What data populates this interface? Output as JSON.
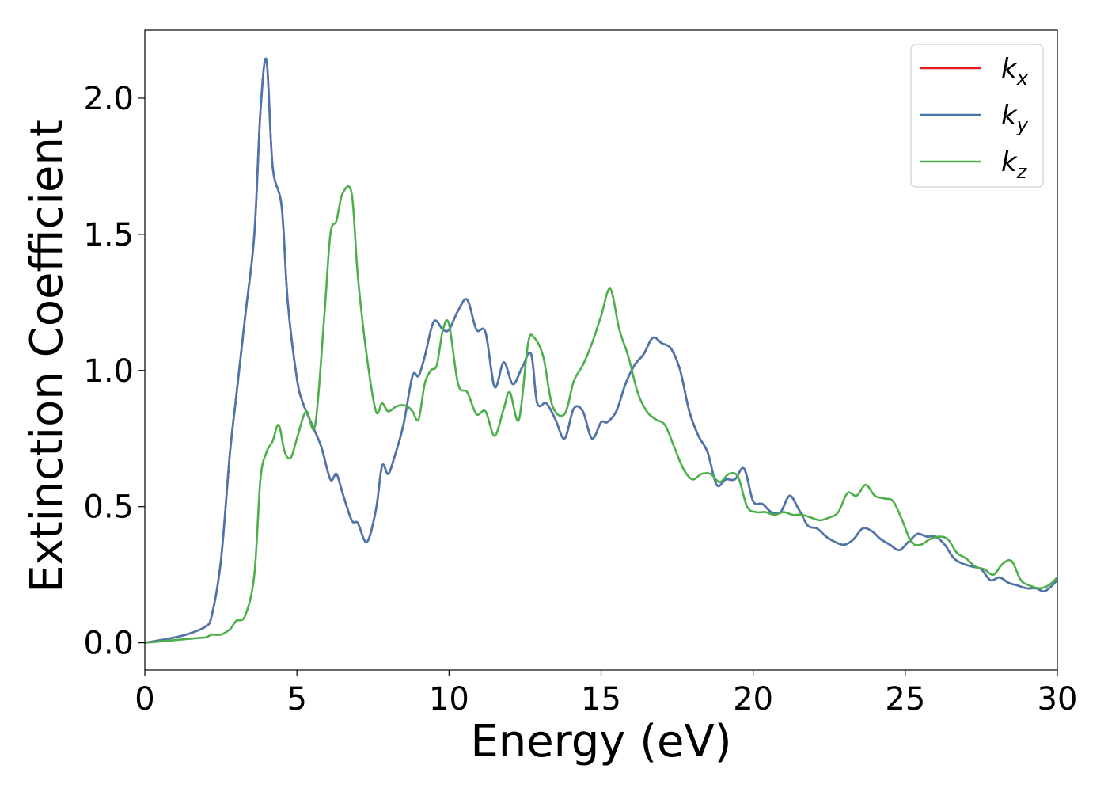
{
  "chart_data": {
    "type": "line",
    "title": "",
    "xlabel": "Energy (eV)",
    "ylabel": "Extinction Coefficient",
    "xlim": [
      0,
      30
    ],
    "ylim": [
      -0.1,
      2.25
    ],
    "xticks": [
      0,
      5,
      10,
      15,
      20,
      25,
      30
    ],
    "xtick_labels": [
      "0",
      "5",
      "10",
      "15",
      "20",
      "25",
      "30"
    ],
    "yticks": [
      0.0,
      0.5,
      1.0,
      1.5,
      2.0
    ],
    "ytick_labels": [
      "0.0",
      "0.5",
      "1.0",
      "1.5",
      "2.0"
    ],
    "grid": false,
    "legend_position": "top-right",
    "series": [
      {
        "name": "k",
        "sub": "x",
        "color": "#e41a1c",
        "x": [
          0,
          1,
          1.5,
          2,
          2.2,
          2.5,
          2.8,
          3,
          3.3,
          3.6,
          3.8,
          4,
          4.2,
          4.5,
          4.7,
          5,
          5.2,
          5.5,
          5.8,
          6.1,
          6.3,
          6.5,
          6.8,
          7.0,
          7.3,
          7.6,
          7.8,
          8.0,
          8.2,
          8.5,
          8.8,
          9.0,
          9.2,
          9.5,
          9.8,
          10.0,
          10.3,
          10.6,
          10.9,
          11.2,
          11.5,
          11.8,
          12.1,
          12.4,
          12.7,
          12.9,
          13.2,
          13.5,
          13.8,
          14.1,
          14.4,
          14.7,
          15.0,
          15.2,
          15.5,
          15.8,
          16.1,
          16.4,
          16.7,
          17.0,
          17.3,
          17.6,
          17.9,
          18.2,
          18.5,
          18.8,
          19.1,
          19.4,
          19.7,
          20.0,
          20.3,
          20.6,
          20.9,
          21.2,
          21.5,
          21.8,
          22.1,
          22.4,
          22.7,
          23.0,
          23.3,
          23.6,
          23.9,
          24.2,
          24.5,
          24.8,
          25.1,
          25.4,
          25.7,
          26.0,
          26.3,
          26.6,
          26.9,
          27.2,
          27.5,
          27.8,
          28.1,
          28.4,
          28.7,
          29.0,
          29.3,
          29.6,
          30.0
        ],
        "y": [
          0.0,
          0.02,
          0.035,
          0.06,
          0.1,
          0.3,
          0.7,
          0.9,
          1.2,
          1.5,
          1.95,
          2.14,
          1.75,
          1.6,
          1.25,
          0.97,
          0.88,
          0.8,
          0.72,
          0.6,
          0.62,
          0.55,
          0.45,
          0.44,
          0.37,
          0.49,
          0.65,
          0.62,
          0.68,
          0.8,
          0.98,
          0.98,
          1.05,
          1.18,
          1.15,
          1.15,
          1.22,
          1.26,
          1.15,
          1.14,
          0.94,
          1.03,
          0.95,
          1.01,
          1.06,
          0.88,
          0.88,
          0.82,
          0.75,
          0.86,
          0.85,
          0.75,
          0.81,
          0.81,
          0.85,
          0.95,
          1.02,
          1.06,
          1.12,
          1.1,
          1.08,
          1.0,
          0.85,
          0.76,
          0.7,
          0.58,
          0.6,
          0.6,
          0.64,
          0.52,
          0.51,
          0.48,
          0.48,
          0.54,
          0.49,
          0.43,
          0.42,
          0.39,
          0.37,
          0.36,
          0.38,
          0.42,
          0.41,
          0.38,
          0.36,
          0.34,
          0.37,
          0.4,
          0.39,
          0.39,
          0.36,
          0.31,
          0.29,
          0.28,
          0.27,
          0.23,
          0.24,
          0.22,
          0.21,
          0.2,
          0.2,
          0.19,
          0.23
        ]
      },
      {
        "name": "k",
        "sub": "y",
        "color": "#4877b0",
        "x": [
          0,
          1,
          1.5,
          2,
          2.2,
          2.5,
          2.8,
          3,
          3.3,
          3.6,
          3.8,
          4,
          4.2,
          4.5,
          4.7,
          5,
          5.2,
          5.5,
          5.8,
          6.1,
          6.3,
          6.5,
          6.8,
          7.0,
          7.3,
          7.6,
          7.8,
          8.0,
          8.2,
          8.5,
          8.8,
          9.0,
          9.2,
          9.5,
          9.8,
          10.0,
          10.3,
          10.6,
          10.9,
          11.2,
          11.5,
          11.8,
          12.1,
          12.4,
          12.7,
          12.9,
          13.2,
          13.5,
          13.8,
          14.1,
          14.4,
          14.7,
          15.0,
          15.2,
          15.5,
          15.8,
          16.1,
          16.4,
          16.7,
          17.0,
          17.3,
          17.6,
          17.9,
          18.2,
          18.5,
          18.8,
          19.1,
          19.4,
          19.7,
          20.0,
          20.3,
          20.6,
          20.9,
          21.2,
          21.5,
          21.8,
          22.1,
          22.4,
          22.7,
          23.0,
          23.3,
          23.6,
          23.9,
          24.2,
          24.5,
          24.8,
          25.1,
          25.4,
          25.7,
          26.0,
          26.3,
          26.6,
          26.9,
          27.2,
          27.5,
          27.8,
          28.1,
          28.4,
          28.7,
          29.0,
          29.3,
          29.6,
          30.0
        ],
        "y": [
          0.0,
          0.02,
          0.035,
          0.06,
          0.1,
          0.3,
          0.7,
          0.9,
          1.2,
          1.5,
          1.95,
          2.14,
          1.75,
          1.6,
          1.25,
          0.97,
          0.88,
          0.8,
          0.72,
          0.6,
          0.62,
          0.55,
          0.45,
          0.44,
          0.37,
          0.49,
          0.65,
          0.62,
          0.68,
          0.8,
          0.98,
          0.98,
          1.05,
          1.18,
          1.15,
          1.15,
          1.22,
          1.26,
          1.15,
          1.14,
          0.94,
          1.03,
          0.95,
          1.01,
          1.06,
          0.88,
          0.88,
          0.82,
          0.75,
          0.86,
          0.85,
          0.75,
          0.81,
          0.81,
          0.85,
          0.95,
          1.02,
          1.06,
          1.12,
          1.1,
          1.08,
          1.0,
          0.85,
          0.76,
          0.7,
          0.58,
          0.6,
          0.6,
          0.64,
          0.52,
          0.51,
          0.48,
          0.48,
          0.54,
          0.49,
          0.43,
          0.42,
          0.39,
          0.37,
          0.36,
          0.38,
          0.42,
          0.41,
          0.38,
          0.36,
          0.34,
          0.37,
          0.4,
          0.39,
          0.39,
          0.36,
          0.31,
          0.29,
          0.28,
          0.27,
          0.23,
          0.24,
          0.22,
          0.21,
          0.2,
          0.2,
          0.19,
          0.23
        ]
      },
      {
        "name": "k",
        "sub": "z",
        "color": "#4daf4a",
        "x": [
          0,
          1,
          1.5,
          2,
          2.2,
          2.5,
          2.8,
          3.0,
          3.3,
          3.6,
          3.8,
          4.0,
          4.2,
          4.4,
          4.6,
          4.8,
          5.0,
          5.3,
          5.6,
          5.9,
          6.1,
          6.3,
          6.5,
          6.8,
          7.0,
          7.3,
          7.6,
          7.8,
          8.0,
          8.3,
          8.6,
          8.8,
          9.0,
          9.2,
          9.4,
          9.6,
          9.8,
          10.0,
          10.3,
          10.6,
          10.9,
          11.2,
          11.5,
          11.8,
          12.0,
          12.3,
          12.6,
          12.8,
          13.1,
          13.4,
          13.8,
          14.1,
          14.4,
          14.7,
          15.0,
          15.3,
          15.6,
          15.9,
          16.2,
          16.5,
          16.8,
          17.1,
          17.4,
          17.7,
          18.0,
          18.3,
          18.6,
          18.9,
          19.2,
          19.5,
          19.8,
          20.1,
          20.4,
          20.7,
          21.0,
          21.3,
          21.6,
          21.9,
          22.2,
          22.5,
          22.8,
          23.1,
          23.4,
          23.7,
          24.0,
          24.3,
          24.6,
          24.9,
          25.2,
          25.5,
          25.8,
          26.1,
          26.4,
          26.7,
          27.0,
          27.3,
          27.6,
          27.9,
          28.2,
          28.5,
          28.8,
          29.1,
          29.4,
          29.7,
          30.0
        ],
        "y": [
          0.0,
          0.01,
          0.015,
          0.02,
          0.03,
          0.03,
          0.05,
          0.08,
          0.1,
          0.25,
          0.6,
          0.7,
          0.74,
          0.8,
          0.7,
          0.68,
          0.75,
          0.85,
          0.8,
          1.2,
          1.5,
          1.55,
          1.65,
          1.65,
          1.35,
          1.05,
          0.85,
          0.88,
          0.85,
          0.87,
          0.87,
          0.85,
          0.82,
          0.95,
          1.0,
          1.02,
          1.15,
          1.17,
          0.95,
          0.92,
          0.84,
          0.85,
          0.76,
          0.86,
          0.92,
          0.82,
          1.1,
          1.12,
          1.05,
          0.87,
          0.84,
          0.96,
          1.02,
          1.1,
          1.2,
          1.3,
          1.15,
          1.05,
          0.92,
          0.85,
          0.82,
          0.8,
          0.72,
          0.64,
          0.6,
          0.62,
          0.62,
          0.59,
          0.62,
          0.61,
          0.5,
          0.48,
          0.48,
          0.47,
          0.48,
          0.47,
          0.47,
          0.46,
          0.45,
          0.46,
          0.48,
          0.55,
          0.54,
          0.58,
          0.54,
          0.53,
          0.52,
          0.45,
          0.37,
          0.36,
          0.38,
          0.39,
          0.38,
          0.33,
          0.31,
          0.28,
          0.27,
          0.25,
          0.29,
          0.3,
          0.23,
          0.21,
          0.2,
          0.21,
          0.24
        ]
      }
    ]
  }
}
